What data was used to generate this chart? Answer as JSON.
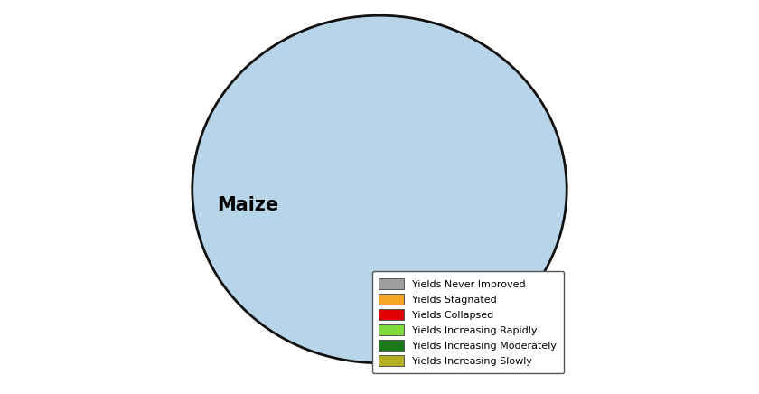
{
  "title": "Maize",
  "figsize": [
    8.4,
    4.36
  ],
  "dpi": 100,
  "ocean_color": "#b8d4e8",
  "land_color": "#e8e8e8",
  "border_color": "#aaaaaa",
  "grid_color": "#aaaacc",
  "outline_color": "#111111",
  "title_fontsize": 15,
  "title_fontweight": "bold",
  "legend_items": [
    {
      "label": "Yields Never Improved",
      "color": "#9e9e9e"
    },
    {
      "label": "Yields Stagnated",
      "color": "#f5a623"
    },
    {
      "label": "Yields Collapsed",
      "color": "#e00000"
    },
    {
      "label": "Yields Increasing Rapidly",
      "color": "#7ddb3c"
    },
    {
      "label": "Yields Increasing Moderately",
      "color": "#1a7a1a"
    },
    {
      "label": "Yields Increasing Slowly",
      "color": "#b5b020"
    }
  ]
}
